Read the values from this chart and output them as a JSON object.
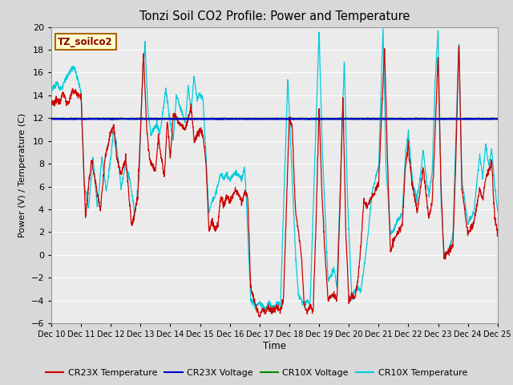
{
  "title": "Tonzi Soil CO2 Profile: Power and Temperature",
  "ylabel": "Power (V) / Temperature (C)",
  "xlabel": "Time",
  "ylim": [
    -6,
    20
  ],
  "yticks": [
    -6,
    -4,
    -2,
    0,
    2,
    4,
    6,
    8,
    10,
    12,
    14,
    16,
    18,
    20
  ],
  "annotation_label": "TZ_soilco2",
  "annotation_bg": "#FFFFCC",
  "annotation_border": "#AA6600",
  "cr23x_temp_color": "#CC0000",
  "cr23x_volt_color": "#0000CC",
  "cr10x_volt_color": "#008800",
  "cr10x_temp_color": "#00CCDD",
  "bg_color": "#D8D8D8",
  "plot_bg_color": "#EBEBEB",
  "grid_color": "#FFFFFF",
  "cr23x_volt_value": 11.93,
  "cr10x_volt_value": 11.96,
  "legend_labels": [
    "CR23X Temperature",
    "CR23X Voltage",
    "CR10X Voltage",
    "CR10X Temperature"
  ],
  "legend_colors": [
    "#CC0000",
    "#0000CC",
    "#008800",
    "#00CCDD"
  ],
  "figsize": [
    6.4,
    4.8
  ],
  "dpi": 100
}
